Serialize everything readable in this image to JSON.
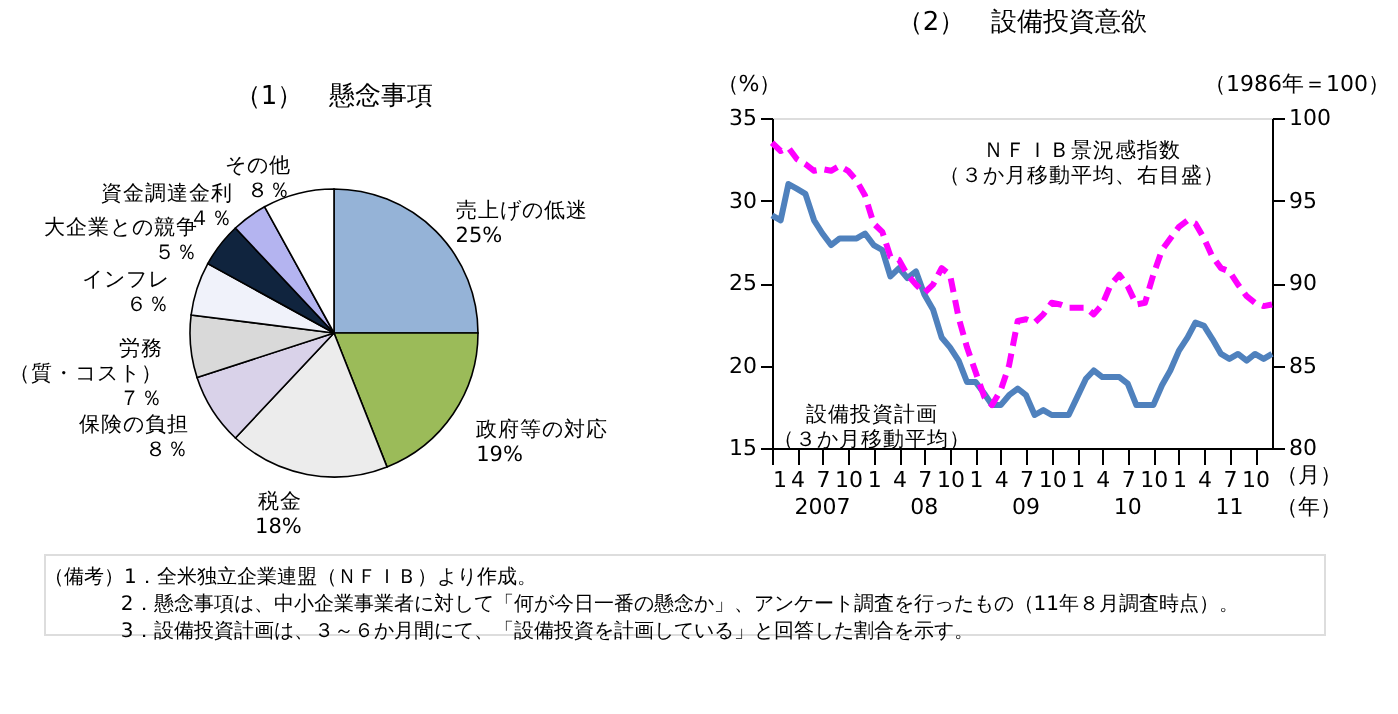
{
  "chart_data": [
    {
      "type": "pie",
      "title": "（1）　懸念事項",
      "categories": [
        "売上げの低迷",
        "政府等の対応",
        "税金",
        "保険の負担",
        "労務（質・コスト）",
        "インフレ",
        "大企業との競争",
        "資金調達金利",
        "その他"
      ],
      "values": [
        25,
        19,
        18,
        8,
        7,
        6,
        5,
        4,
        8
      ],
      "value_labels": [
        "25%",
        "19%",
        "18%",
        "８％",
        "７％",
        "６％",
        "５％",
        "４％",
        "８％"
      ],
      "colors": [
        "#95b3d7",
        "#9bbb59",
        "#ececec",
        "#d9d2e9",
        "#d9d9d9",
        "#f0f2fa",
        "#10243e",
        "#b4b4f0",
        "#ffffff"
      ],
      "annotations": [
        "（備考）1．全米独立企業連盟（ＮＦＩＢ）より作成。",
        "2．懸念事項は、中小企業事業者に対して「何が今日一番の懸念か」、アンケート調査を行ったもの（11年８月調査時点）。",
        "3．設備投資計画は、３～６か月間にて、「設備投資を計画している」と回答した割合を示す。"
      ]
    },
    {
      "type": "line",
      "title": "（2）　設備投資意欲",
      "ylabel": "（%）",
      "y2label": "（1986年＝100）",
      "x": [
        "2007-01",
        "2007-02",
        "2007-03",
        "2007-04",
        "2007-05",
        "2007-06",
        "2007-07",
        "2007-08",
        "2007-09",
        "2007-10",
        "2007-11",
        "2007-12",
        "2008-01",
        "2008-02",
        "2008-03",
        "2008-04",
        "2008-05",
        "2008-06",
        "2008-07",
        "2008-08",
        "2008-09",
        "2008-10",
        "2008-11",
        "2008-12",
        "2009-01",
        "2009-02",
        "2009-03",
        "2009-04",
        "2009-05",
        "2009-06",
        "2009-07",
        "2009-08",
        "2009-09",
        "2009-10",
        "2009-11",
        "2009-12",
        "2010-01",
        "2010-02",
        "2010-03",
        "2010-04",
        "2010-05",
        "2010-06",
        "2010-07",
        "2010-08",
        "2010-09",
        "2010-10",
        "2010-11",
        "2010-12",
        "2011-01",
        "2011-02",
        "2011-03",
        "2011-04",
        "2011-05",
        "2011-06",
        "2011-07",
        "2011-08",
        "2011-09",
        "2011-10",
        "2011-11",
        "2011-12"
      ],
      "series": [
        {
          "name": "設備投資計画（３か月移動平均）",
          "color": "#4f81bd",
          "line_style": "solid",
          "values": [
            29.1,
            28.8,
            31.0,
            30.7,
            30.4,
            28.8,
            28.0,
            27.3,
            27.7,
            27.7,
            27.7,
            28.0,
            27.3,
            27.0,
            25.4,
            25.9,
            25.3,
            25.7,
            24.3,
            23.4,
            21.7,
            21.1,
            20.3,
            19.0,
            19.0,
            18.3,
            17.6,
            17.6,
            18.2,
            18.6,
            18.2,
            17.0,
            17.3,
            17.0,
            17.0,
            17.0,
            18.1,
            19.2,
            19.7,
            19.3,
            19.3,
            19.3,
            18.9,
            17.6,
            17.6,
            17.6,
            18.8,
            19.7,
            20.9,
            21.7,
            22.6,
            22.4,
            21.6,
            20.7,
            20.4,
            20.7,
            20.3,
            20.7,
            20.4,
            20.7
          ]
        },
        {
          "name": "ＮＦＩＢ景況感指数（３か月移動平均、右目盛）",
          "color": "#ff00ff",
          "line_style": "dashed",
          "axis": "y2",
          "values": [
            98.5,
            98.0,
            98.2,
            97.5,
            97.2,
            96.8,
            96.9,
            96.8,
            97.1,
            96.8,
            96.2,
            95.3,
            93.6,
            93.1,
            91.6,
            91.4,
            90.5,
            89.9,
            89.4,
            89.9,
            90.9,
            90.5,
            87.9,
            86.1,
            84.6,
            83.1,
            82.6,
            83.5,
            85.0,
            87.7,
            87.8,
            87.6,
            88.1,
            88.8,
            88.7,
            88.5,
            88.5,
            88.5,
            88.1,
            88.7,
            89.9,
            90.5,
            89.8,
            88.7,
            88.8,
            90.5,
            92.0,
            92.7,
            93.4,
            93.8,
            93.6,
            92.7,
            91.6,
            90.9,
            90.7,
            89.9,
            89.2,
            88.8,
            88.6,
            88.7
          ]
        }
      ],
      "xlim": [
        "2007-01",
        "2011-12"
      ],
      "xticks": [
        {
          "value": "2007-01",
          "label": "1"
        },
        {
          "value": "2007-04",
          "label": "4"
        },
        {
          "value": "2007-07",
          "label": "7"
        },
        {
          "value": "2007-10",
          "label": "10"
        },
        {
          "value": "2008-01",
          "label": "1"
        },
        {
          "value": "2008-04",
          "label": "4"
        },
        {
          "value": "2008-07",
          "label": "7"
        },
        {
          "value": "2008-10",
          "label": "10"
        },
        {
          "value": "2009-01",
          "label": "1"
        },
        {
          "value": "2009-04",
          "label": "4"
        },
        {
          "value": "2009-07",
          "label": "7"
        },
        {
          "value": "2009-10",
          "label": "10"
        },
        {
          "value": "2010-01",
          "label": "1"
        },
        {
          "value": "2010-04",
          "label": "4"
        },
        {
          "value": "2010-07",
          "label": "7"
        },
        {
          "value": "2010-10",
          "label": "10"
        },
        {
          "value": "2011-01",
          "label": "1"
        },
        {
          "value": "2011-04",
          "label": "4"
        },
        {
          "value": "2011-07",
          "label": "7"
        },
        {
          "value": "2011-10",
          "label": "10"
        }
      ],
      "ylim": [
        15,
        35
      ],
      "yticks": [
        15,
        20,
        25,
        30,
        35
      ],
      "y2lim": [
        80,
        100
      ],
      "y2ticks": [
        80,
        85,
        90,
        95,
        100
      ],
      "grid": false,
      "legend": false,
      "marker": "none",
      "annotations": [
        "2007",
        "08",
        "09",
        "10",
        "11",
        "（月）",
        "（年）"
      ]
    }
  ]
}
